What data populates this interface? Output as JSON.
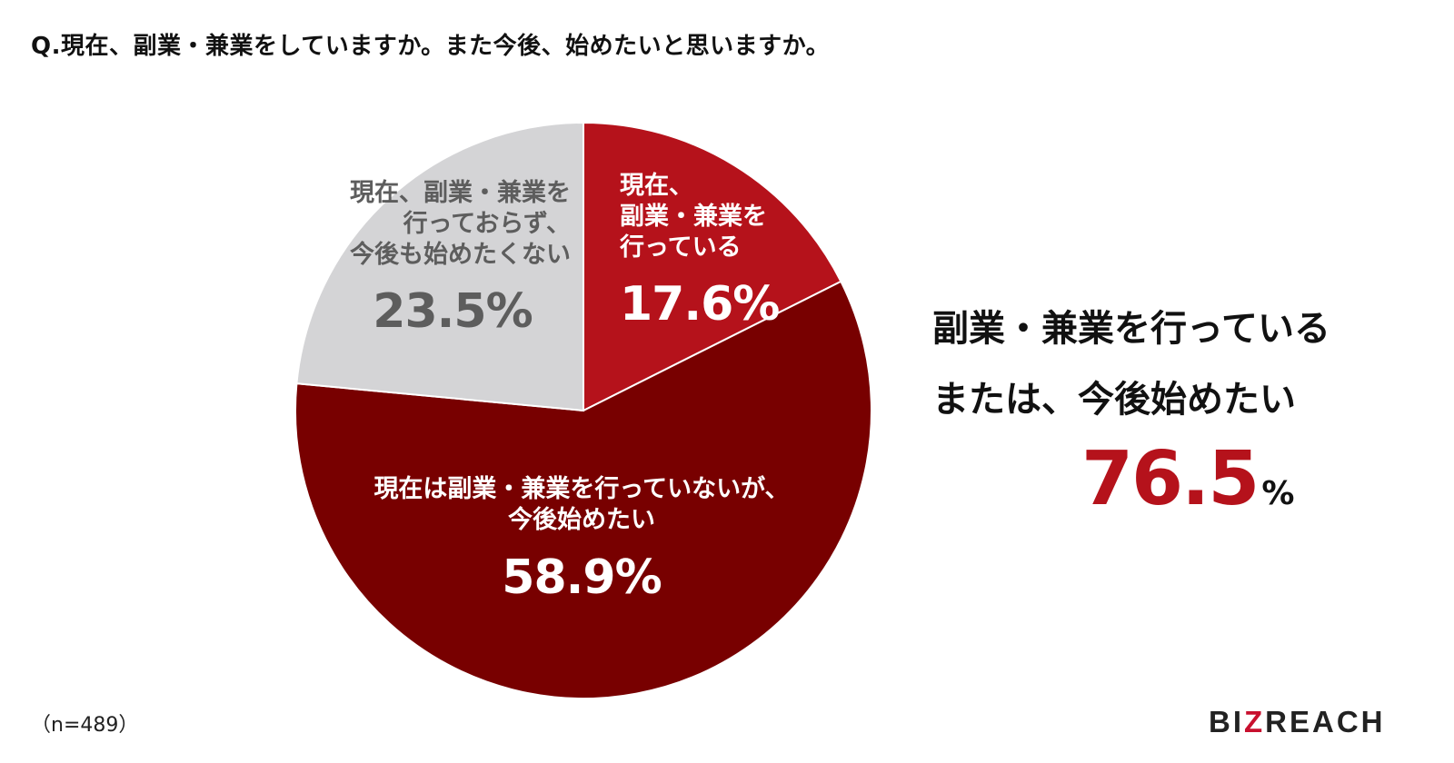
{
  "question": "Q.現在、副業・兼業をしていますか。また今後、始めたいと思いますか。",
  "chart_data": {
    "type": "pie",
    "start_angle_deg": 0,
    "direction": "clockwise",
    "slices": [
      {
        "lines": [
          "現在、",
          "副業・兼業を",
          "行っている"
        ],
        "value": 17.6,
        "value_label": "17.6%",
        "color": "#b5121b",
        "label_color": "#ffffff"
      },
      {
        "lines": [
          "現在は副業・兼業を行っていないが、",
          "今後始めたい"
        ],
        "value": 58.9,
        "value_label": "58.9%",
        "color": "#780000",
        "label_color": "#ffffff"
      },
      {
        "lines": [
          "現在、副業・兼業を",
          "行っておらず、",
          "今後も始めたくない"
        ],
        "value": 23.5,
        "value_label": "23.5%",
        "color": "#d4d4d6",
        "label_color": "#5d5d5d"
      }
    ]
  },
  "summary": {
    "lines": [
      "副業・兼業を行っている",
      "または、今後始めたい"
    ],
    "value": "76.5",
    "unit": "%",
    "value_color": "#b5121b"
  },
  "sample_size": "（n=489）",
  "logo": {
    "text": "BIZREACH",
    "accent_color": "#c8102e"
  }
}
